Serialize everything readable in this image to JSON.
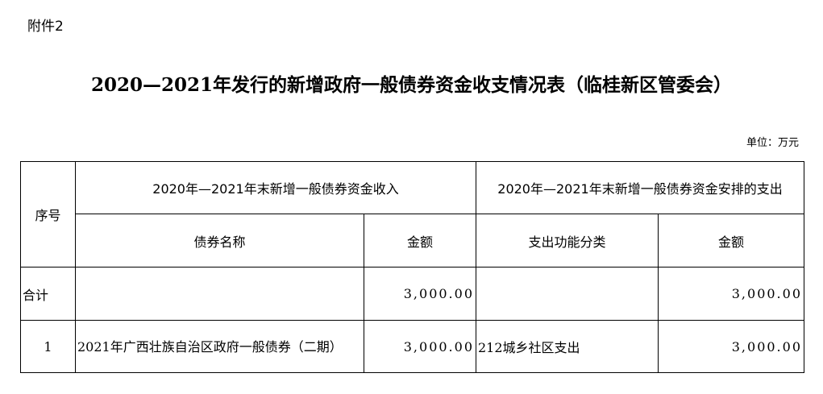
{
  "attachment": "附件2",
  "title": "2020—2021年发行的新增政府一般债券资金收支情况表（临桂新区管委会）",
  "unit": "单位：万元",
  "table": {
    "col_seq": "序号",
    "group_income": "2020年—2021年末新增一般债券资金收入",
    "group_expense": "2020年—2021年末新增一般债券资金安排的支出",
    "col_bond_name": "债券名称",
    "col_income_amount": "金额",
    "col_function": "支出功能分类",
    "col_expense_amount": "金额",
    "total": {
      "seq": "合计",
      "bond_name": "",
      "income_amount": "3,000.00",
      "function": "",
      "expense_amount": "3,000.00"
    },
    "rows": [
      {
        "seq": "1",
        "bond_name": "2021年广西壮族自治区政府一般债券（二期）",
        "income_amount": "3,000.00",
        "function": "212城乡社区支出",
        "expense_amount": "3,000.00"
      }
    ]
  }
}
